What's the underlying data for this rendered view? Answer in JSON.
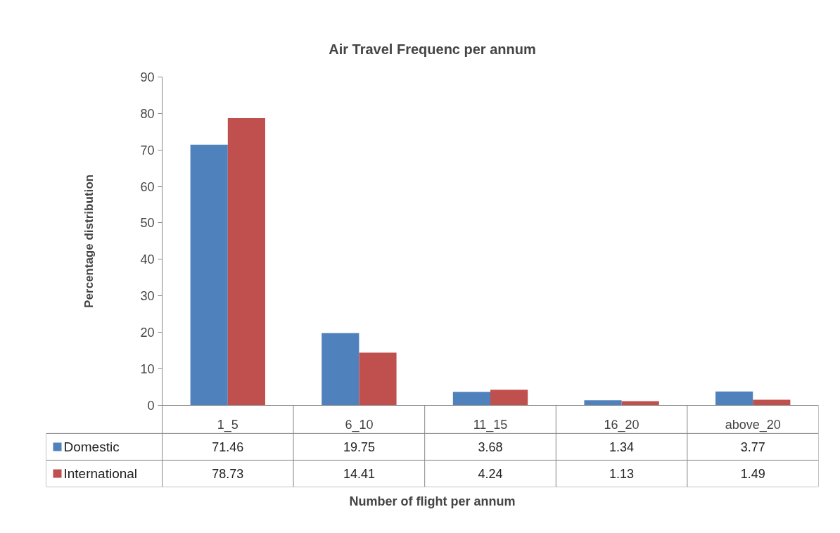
{
  "chart_data": {
    "type": "bar",
    "title": "Air Travel Frequenc per annum",
    "xlabel": "Number of flight per annum",
    "ylabel": "Percentage distribution",
    "categories": [
      "1_5",
      "6_10",
      "11_15",
      "16_20",
      "above_20"
    ],
    "series": [
      {
        "name": "Domestic",
        "color": "#4f81bd",
        "values": [
          71.46,
          19.75,
          3.68,
          1.34,
          3.77
        ]
      },
      {
        "name": "International",
        "color": "#c0504d",
        "values": [
          78.73,
          14.41,
          4.24,
          1.13,
          1.49
        ]
      }
    ],
    "ylim": [
      0,
      90
    ],
    "yticks": [
      0,
      10,
      20,
      30,
      40,
      50,
      60,
      70,
      80,
      90
    ],
    "grid": false,
    "legend": "bottom",
    "data_labels": true
  }
}
